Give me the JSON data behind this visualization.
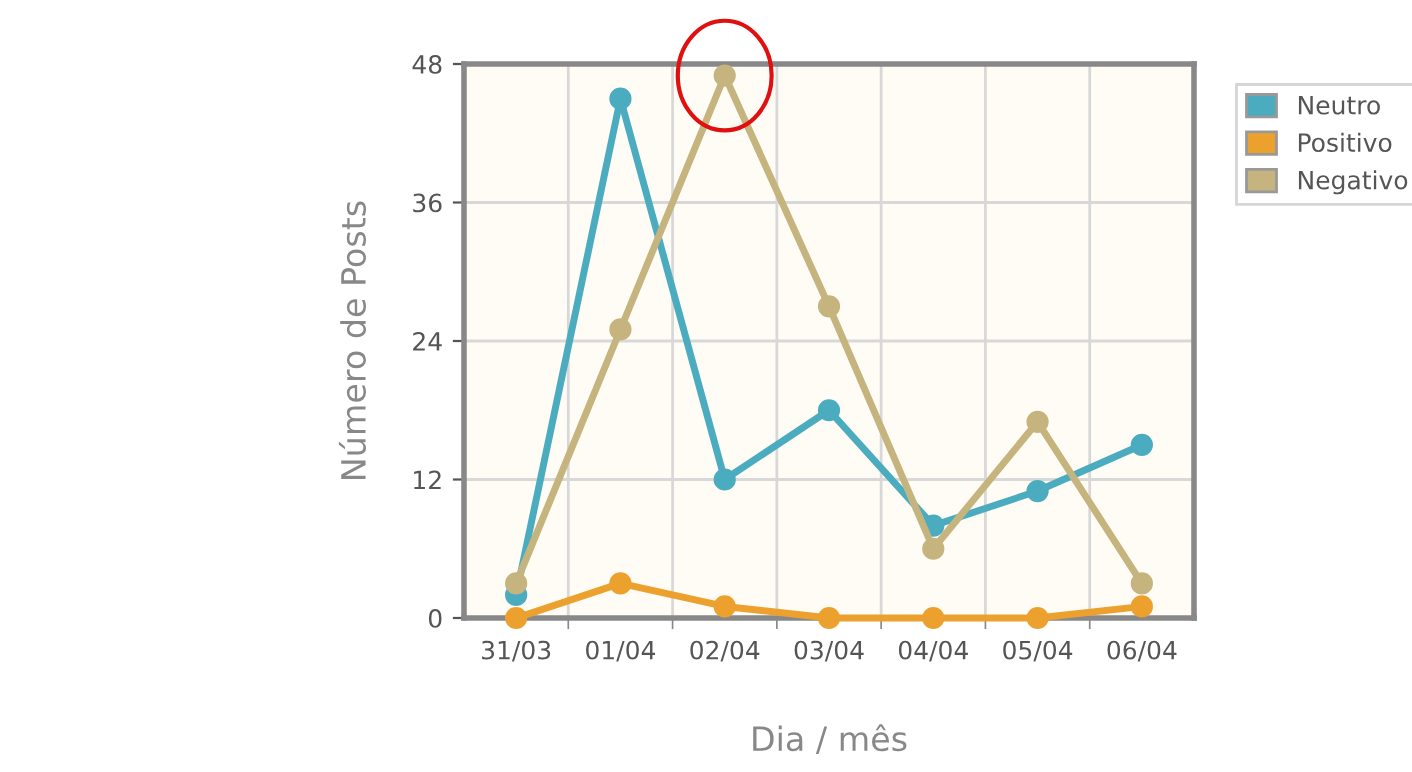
{
  "chart_data": {
    "type": "line",
    "xlabel": "Dia / mês",
    "ylabel": "Número de Posts",
    "categories": [
      "31/03",
      "01/04",
      "02/04",
      "03/04",
      "04/04",
      "05/04",
      "06/04"
    ],
    "series": [
      {
        "name": "Neutro",
        "color": "#4bacc0",
        "values": [
          2,
          45,
          12,
          18,
          8,
          11,
          15
        ]
      },
      {
        "name": "Positivo",
        "color": "#eca12e",
        "values": [
          0,
          3,
          1,
          0,
          0,
          0,
          1
        ]
      },
      {
        "name": "Negativo",
        "color": "#c6b47f",
        "values": [
          3,
          25,
          47,
          27,
          6,
          17,
          3
        ]
      }
    ],
    "ylim": [
      0,
      48
    ],
    "yticks": [
      0,
      12,
      24,
      36,
      48
    ],
    "grid": true,
    "legend": "right",
    "marker": "circle",
    "line_style": "solid"
  }
}
